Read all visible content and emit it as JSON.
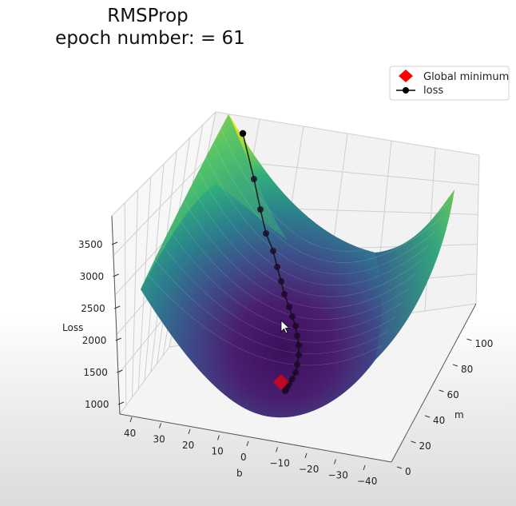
{
  "chart_data": {
    "type": "surface3d",
    "title": "RMSProp",
    "subtitle_prefix": "epoch number: =",
    "epoch": 61,
    "xlabel": "b",
    "ylabel": "m",
    "zlabel": "Loss",
    "xlim": [
      -40,
      40
    ],
    "ylim": [
      0,
      100
    ],
    "zlim": [
      1000,
      3500
    ],
    "x_ticks": [
      "40",
      "30",
      "20",
      "10",
      "0",
      "−10",
      "−20",
      "−30",
      "−40"
    ],
    "y_ticks": [
      "0",
      "20",
      "40",
      "60",
      "80",
      "100"
    ],
    "z_ticks": [
      "1000",
      "1500",
      "2000",
      "2500",
      "3000",
      "3500"
    ],
    "colormap": "viridis",
    "legend": {
      "placement": "top-right",
      "entries": [
        {
          "label": "Global minimum",
          "marker": "diamond",
          "color": "#ff0000"
        },
        {
          "label": "loss",
          "marker": "line-dot",
          "color": "#000000"
        }
      ]
    },
    "global_minimum": {
      "b": -3,
      "m": 30,
      "loss": 1150
    },
    "loss_path": [
      {
        "b": 40,
        "m": 100,
        "loss": 3550
      },
      {
        "b": 36,
        "m": 96,
        "loss": 3150
      },
      {
        "b": 32,
        "m": 92,
        "loss": 2850
      },
      {
        "b": 28,
        "m": 88,
        "loss": 2600
      },
      {
        "b": 24,
        "m": 84,
        "loss": 2400
      },
      {
        "b": 20,
        "m": 80,
        "loss": 2230
      },
      {
        "b": 17,
        "m": 76,
        "loss": 2080
      },
      {
        "b": 14,
        "m": 72,
        "loss": 1950
      },
      {
        "b": 11,
        "m": 68,
        "loss": 1840
      },
      {
        "b": 9,
        "m": 64,
        "loss": 1740
      },
      {
        "b": 7,
        "m": 60,
        "loss": 1650
      },
      {
        "b": 5,
        "m": 56,
        "loss": 1570
      },
      {
        "b": 3,
        "m": 52,
        "loss": 1490
      },
      {
        "b": 1,
        "m": 48,
        "loss": 1420
      },
      {
        "b": 0,
        "m": 45,
        "loss": 1360
      },
      {
        "b": -1,
        "m": 42,
        "loss": 1300
      },
      {
        "b": -2,
        "m": 38,
        "loss": 1250
      },
      {
        "b": -3,
        "m": 34,
        "loss": 1200
      },
      {
        "b": -4,
        "m": 31,
        "loss": 1160
      },
      {
        "b": -5,
        "m": 29,
        "loss": 1130
      },
      {
        "b": -6,
        "m": 28,
        "loss": 1120
      }
    ]
  }
}
